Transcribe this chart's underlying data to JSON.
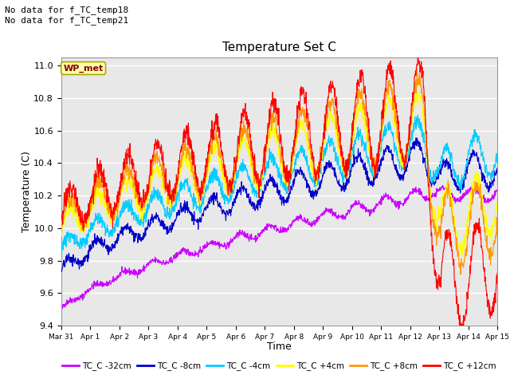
{
  "title": "Temperature Set C",
  "xlabel": "Time",
  "ylabel": "Temperature (C)",
  "ylim": [
    9.4,
    11.05
  ],
  "xlim": [
    0,
    15
  ],
  "annotation_lines": [
    "No data for f_TC_temp18",
    "No data for f_TC_temp21"
  ],
  "wp_met_label": "WP_met",
  "legend_entries": [
    "TC_C -32cm",
    "TC_C -8cm",
    "TC_C -4cm",
    "TC_C +4cm",
    "TC_C +8cm",
    "TC_C +12cm"
  ],
  "line_colors": [
    "#cc00ff",
    "#0000cc",
    "#00ccff",
    "#ffff00",
    "#ff9900",
    "#ff0000"
  ],
  "bg_color": "#e8e8e8",
  "grid_color": "#ffffff",
  "tick_labels": [
    "Mar 31",
    "Apr 1",
    "Apr 2",
    "Apr 3",
    "Apr 4",
    "Apr 5",
    "Apr 6",
    "Apr 7",
    "Apr 8",
    "Apr 9",
    "Apr 10",
    "Apr 11",
    "Apr 12",
    "Apr 13",
    "Apr 14",
    "Apr 15"
  ],
  "n_points": 1500,
  "yticks": [
    9.4,
    9.6,
    9.8,
    10.0,
    10.2,
    10.4,
    10.6,
    10.8,
    11.0
  ]
}
